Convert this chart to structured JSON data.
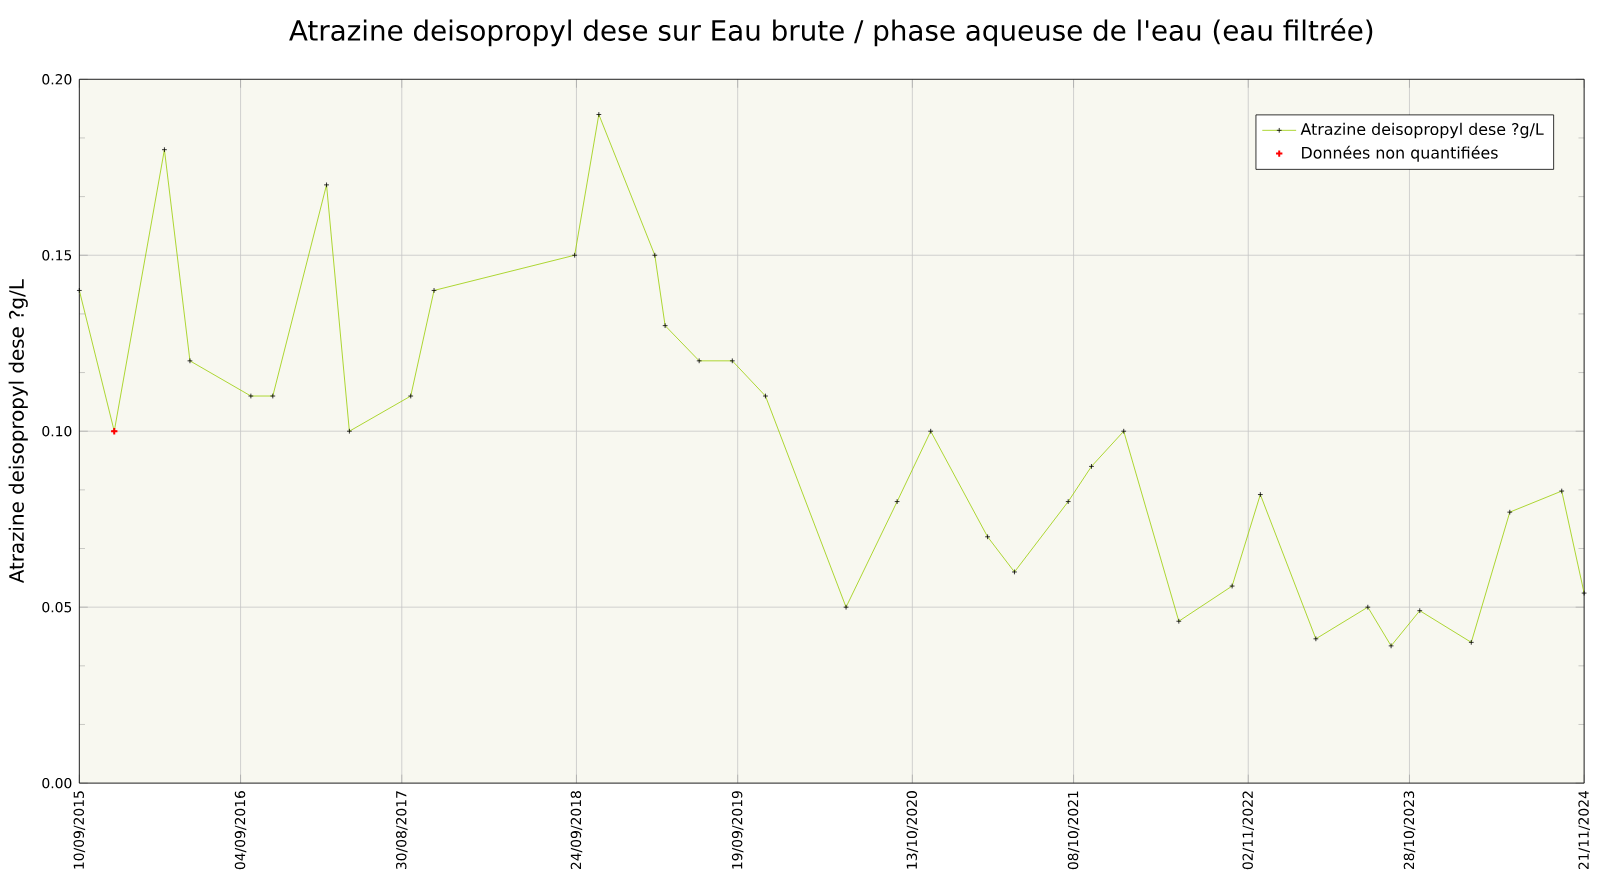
{
  "chart_data": {
    "type": "line",
    "title": "Atrazine deisopropyl dese sur Eau brute / phase aqueuse de l'eau (eau filtrée)",
    "ylabel": "Atrazine deisopropyl dese ?g/L",
    "xlim": [
      "2015-09-10",
      "2024-11-21"
    ],
    "xticks": [
      {
        "value": "2015-09-10",
        "label": "10/09/2015"
      },
      {
        "value": "2016-09-04",
        "label": "04/09/2016"
      },
      {
        "value": "2017-08-30",
        "label": "30/08/2017"
      },
      {
        "value": "2018-09-24",
        "label": "24/09/2018"
      },
      {
        "value": "2019-09-19",
        "label": "19/09/2019"
      },
      {
        "value": "2020-10-13",
        "label": "13/10/2020"
      },
      {
        "value": "2021-10-08",
        "label": "08/10/2021"
      },
      {
        "value": "2022-11-02",
        "label": "02/11/2022"
      },
      {
        "value": "2023-10-28",
        "label": "28/10/2023"
      },
      {
        "value": "2024-11-21",
        "label": "21/11/2024"
      }
    ],
    "ylim": [
      0,
      0.2
    ],
    "yticks": [
      {
        "value": 0,
        "label": "0.00"
      },
      {
        "value": 0.05,
        "label": "0.05"
      },
      {
        "value": 0.1,
        "label": "0.10"
      },
      {
        "value": 0.15,
        "label": "0.15"
      },
      {
        "value": 0.2,
        "label": "0.20"
      }
    ],
    "grid": true,
    "legend": "top right",
    "marker": "cross",
    "series": [
      {
        "name": "Atrazine deisopropyl dese ?g/L",
        "color": "#99cc00",
        "x": [
          "2015-09-10",
          "2015-11-27",
          "2016-03-18",
          "2016-05-14",
          "2016-09-27",
          "2016-11-15",
          "2017-03-15",
          "2017-05-05",
          "2017-09-19",
          "2017-11-10",
          "2018-09-20",
          "2018-11-13",
          "2019-03-18",
          "2019-04-10",
          "2019-06-25",
          "2019-09-07",
          "2019-11-20",
          "2020-05-18",
          "2020-09-09",
          "2020-11-23",
          "2021-03-30",
          "2021-05-29",
          "2021-09-26",
          "2021-11-17",
          "2022-01-28",
          "2022-05-31",
          "2022-09-27",
          "2022-11-29",
          "2023-04-02",
          "2023-07-27",
          "2023-09-17",
          "2023-11-20",
          "2024-03-14",
          "2024-06-08",
          "2024-10-02",
          "2024-11-21"
        ],
        "values": [
          0.14,
          0.1,
          0.18,
          0.12,
          0.11,
          0.11,
          0.17,
          0.1,
          0.11,
          0.14,
          0.15,
          0.19,
          0.15,
          0.13,
          0.12,
          0.12,
          0.11,
          0.05,
          0.08,
          0.1,
          0.07,
          0.06,
          0.08,
          0.09,
          0.1,
          0.046,
          0.056,
          0.082,
          0.041,
          0.05,
          0.039,
          0.049,
          0.04,
          0.077,
          0.083,
          0.054
        ]
      },
      {
        "name": "Données non quantifiées",
        "color": "#ff0000",
        "type": "scatter",
        "x": [
          "2015-11-27"
        ],
        "values": [
          0.1
        ]
      }
    ]
  }
}
